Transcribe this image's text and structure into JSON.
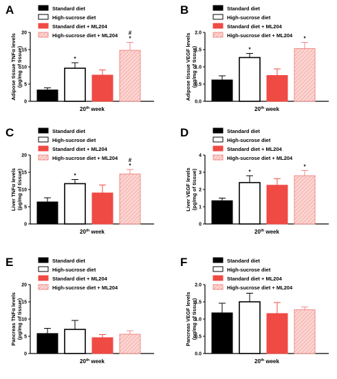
{
  "figure_title": "",
  "legend_labels": [
    "Standard diet",
    "High-sucrose diet",
    "Standard diet + ML204",
    "High-sucrose diet + ML204"
  ],
  "colors": {
    "standard": "#000000",
    "high_sucrose": "#ffffff",
    "standard_ml204": "#f04a44",
    "high_sucrose_ml204": "#fbd5d2",
    "hatch": "#f08a84",
    "axis": "#000000"
  },
  "chart_data": [
    {
      "panel": "A",
      "type": "bar",
      "ylabel_lines": [
        "Adipose tissue TNFα levels",
        "(pg/mg of tissue)"
      ],
      "xlabel": "20th week",
      "ylim": [
        0,
        20
      ],
      "yticks": [
        "0",
        "5",
        "10",
        "15",
        "20"
      ],
      "legend": [
        "Standard diet",
        "High-sucrose diet",
        "Standard diet + ML204",
        "High-sucrose diet + ML204"
      ],
      "series": [
        {
          "name": "Standard diet",
          "value": 3.3,
          "error": 0.6,
          "marks": []
        },
        {
          "name": "High-sucrose diet",
          "value": 9.6,
          "error": 1.6,
          "marks": [
            "*"
          ]
        },
        {
          "name": "Standard diet + ML204",
          "value": 7.6,
          "error": 1.5,
          "marks": []
        },
        {
          "name": "High-sucrose diet + ML204",
          "value": 14.8,
          "error": 2.3,
          "marks": [
            "*",
            "#"
          ]
        }
      ]
    },
    {
      "panel": "B",
      "type": "bar",
      "ylabel_lines": [
        "Adipose tissue VEGF levels",
        "(pg/mg of tissue)"
      ],
      "xlabel": "20th week",
      "ylim": [
        0,
        2
      ],
      "yticks": [
        "0.0",
        "0.5",
        "1.0",
        "1.5",
        "2.0"
      ],
      "legend": [
        "Standard diet",
        "High-sucrose diet",
        "Standard diet + ML204",
        "High-sucrose diet + ML204"
      ],
      "series": [
        {
          "name": "Standard diet",
          "value": 0.62,
          "error": 0.12,
          "marks": []
        },
        {
          "name": "High-sucrose diet",
          "value": 1.27,
          "error": 0.12,
          "marks": [
            "*"
          ]
        },
        {
          "name": "Standard diet + ML204",
          "value": 0.75,
          "error": 0.19,
          "marks": []
        },
        {
          "name": "High-sucrose diet + ML204",
          "value": 1.53,
          "error": 0.18,
          "marks": [
            "*"
          ]
        }
      ]
    },
    {
      "panel": "C",
      "type": "bar",
      "ylabel_lines": [
        "Liver TNFα levels",
        "(pg/mg of tissue)"
      ],
      "xlabel": "20th week",
      "ylim": [
        0,
        20
      ],
      "yticks": [
        "0",
        "5",
        "10",
        "15",
        "20"
      ],
      "legend": [
        "Standard diet",
        "High-sucrose diet",
        "Standard diet + ML204",
        "High-sucrose diet + ML204"
      ],
      "series": [
        {
          "name": "Standard diet",
          "value": 6.4,
          "error": 1.2,
          "marks": []
        },
        {
          "name": "High-sucrose diet",
          "value": 11.7,
          "error": 1.2,
          "marks": [
            "*"
          ]
        },
        {
          "name": "Standard diet + ML204",
          "value": 9.0,
          "error": 2.3,
          "marks": []
        },
        {
          "name": "High-sucrose diet + ML204",
          "value": 14.5,
          "error": 1.3,
          "marks": [
            "*",
            "#"
          ]
        }
      ]
    },
    {
      "panel": "D",
      "type": "bar",
      "ylabel_lines": [
        "Liver VEGF levels",
        "(pg/mg of tissue)"
      ],
      "xlabel": "20th week",
      "ylim": [
        0,
        4
      ],
      "yticks": [
        "0",
        "1",
        "2",
        "3",
        "4"
      ],
      "legend": [
        "Standard diet",
        "High-sucrose diet",
        "Standard diet + ML204",
        "High-sucrose diet + ML204"
      ],
      "series": [
        {
          "name": "Standard diet",
          "value": 1.35,
          "error": 0.15,
          "marks": []
        },
        {
          "name": "High-sucrose diet",
          "value": 2.4,
          "error": 0.4,
          "marks": [
            "*"
          ]
        },
        {
          "name": "Standard diet + ML204",
          "value": 2.25,
          "error": 0.38,
          "marks": []
        },
        {
          "name": "High-sucrose diet + ML204",
          "value": 2.8,
          "error": 0.3,
          "marks": [
            "*"
          ]
        }
      ]
    },
    {
      "panel": "E",
      "type": "bar",
      "ylabel_lines": [
        "Pancreas TNFα levels",
        "(pg/mg of tissue)"
      ],
      "xlabel": "20th week",
      "ylim": [
        0,
        20
      ],
      "yticks": [
        "0",
        "5",
        "10",
        "15",
        "20"
      ],
      "legend": [
        "Standard diet",
        "High-sucrose diet",
        "Standard diet + ML204",
        "High-sucrose diet + ML204"
      ],
      "series": [
        {
          "name": "Standard diet",
          "value": 5.8,
          "error": 1.5,
          "marks": []
        },
        {
          "name": "High-sucrose diet",
          "value": 7.0,
          "error": 2.6,
          "marks": []
        },
        {
          "name": "Standard diet + ML204",
          "value": 4.6,
          "error": 0.9,
          "marks": []
        },
        {
          "name": "High-sucrose diet + ML204",
          "value": 5.6,
          "error": 1.0,
          "marks": []
        }
      ]
    },
    {
      "panel": "F",
      "type": "bar",
      "ylabel_lines": [
        "Pancreas VEGF levels",
        "(pg/mg of tissue)"
      ],
      "xlabel": "20th week",
      "ylim": [
        0,
        2
      ],
      "yticks": [
        "0.0",
        "0.5",
        "1.0",
        "1.5",
        "2.0"
      ],
      "legend": [
        "Standard diet",
        "High-sucrose diet",
        "Standard diet + ML204",
        "High-sucrose diet + ML204"
      ],
      "series": [
        {
          "name": "Standard diet",
          "value": 1.18,
          "error": 0.28,
          "marks": []
        },
        {
          "name": "High-sucrose diet",
          "value": 1.5,
          "error": 0.25,
          "marks": []
        },
        {
          "name": "Standard diet + ML204",
          "value": 1.16,
          "error": 0.32,
          "marks": []
        },
        {
          "name": "High-sucrose diet + ML204",
          "value": 1.27,
          "error": 0.08,
          "marks": []
        }
      ]
    }
  ]
}
